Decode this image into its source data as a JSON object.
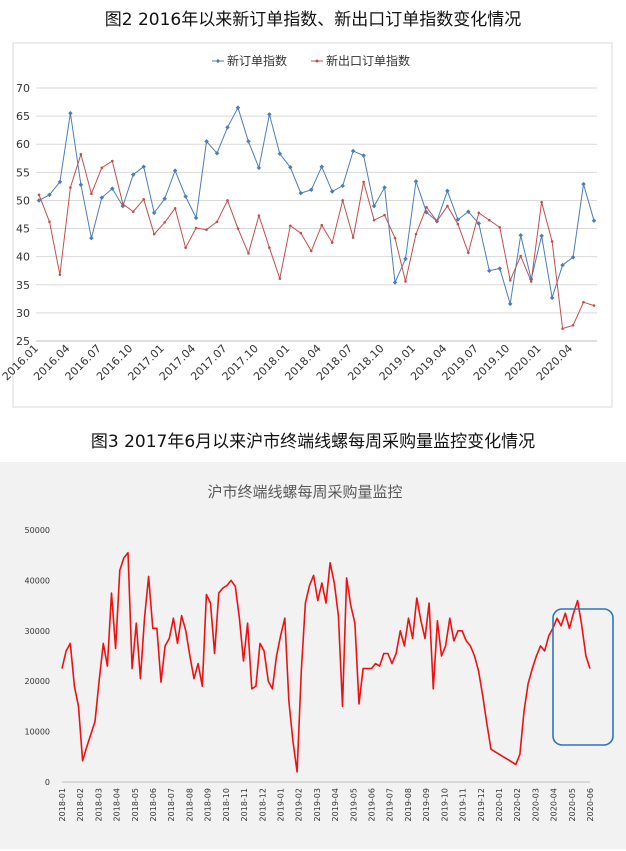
{
  "captions": {
    "fig2": "图2  2016年以来新订单指数、新出口订单指数变化情况",
    "fig3": "图3  2017年6月以来沪市终端线螺每周采购量监控变化情况"
  },
  "chart_data": [
    {
      "type": "line",
      "title": "",
      "ylim": [
        25,
        70
      ],
      "yticks": [
        25,
        30,
        35,
        40,
        45,
        50,
        55,
        60,
        65,
        70
      ],
      "xticklabels": [
        "2016.01",
        "2016.04",
        "2016.07",
        "2016.10",
        "2017.01",
        "2017.04",
        "2017.07",
        "2017.10",
        "2018.01",
        "2018.04",
        "2018.07",
        "2018.10",
        "2019.01",
        "2019.04",
        "2019.07",
        "2019.10",
        "2020.01",
        "2020.04"
      ],
      "grid": true,
      "legend": "top-center",
      "series": [
        {
          "name": "新订单指数",
          "color": "#4a7ebb",
          "values": [
            50.0,
            51.0,
            53.3,
            65.5,
            52.8,
            43.3,
            50.5,
            52.1,
            49.0,
            54.6,
            56.0,
            47.8,
            50.3,
            55.3,
            50.7,
            46.9,
            60.5,
            58.4,
            63.0,
            66.5,
            60.5,
            55.8,
            65.3,
            58.3,
            55.9,
            51.3,
            51.9,
            56.0,
            51.6,
            52.6,
            58.8,
            58.0,
            49.0,
            52.3,
            35.4,
            39.6,
            53.4,
            47.9,
            46.3,
            51.7,
            46.6,
            48.0,
            45.9,
            37.5,
            37.9,
            31.6,
            43.8,
            36.0,
            43.7,
            32.7,
            38.5,
            39.9,
            52.9,
            46.4
          ]
        },
        {
          "name": "新出口订单指数",
          "color": "#c0504d",
          "values": [
            51.0,
            46.2,
            36.8,
            52.3,
            58.2,
            51.2,
            55.8,
            57.0,
            49.4,
            48.0,
            50.2,
            44.0,
            46.1,
            48.6,
            41.6,
            45.1,
            44.8,
            46.2,
            50.0,
            45.0,
            40.6,
            47.3,
            41.6,
            36.1,
            45.5,
            44.2,
            41.0,
            45.6,
            42.5,
            50.0,
            43.4,
            53.3,
            46.5,
            47.4,
            43.3,
            35.6,
            44.0,
            48.8,
            46.3,
            49.0,
            45.8,
            40.7,
            47.8,
            46.5,
            45.2,
            35.8,
            40.1,
            35.6,
            49.7,
            42.7,
            27.2,
            27.8,
            31.9,
            31.3
          ]
        }
      ]
    },
    {
      "type": "line",
      "title": "沪市终端线螺每周采购量监控",
      "ylim": [
        0,
        50000
      ],
      "yticks": [
        0,
        10000,
        20000,
        30000,
        40000,
        50000
      ],
      "xticklabels": [
        "2018-01",
        "2018-02",
        "2018-03",
        "2018-04",
        "2018-05",
        "2018-06",
        "2018-07",
        "2018-08",
        "2018-09",
        "2018-10",
        "2018-11",
        "2018-12",
        "2019-01",
        "2019-02",
        "2019-03",
        "2019-04",
        "2019-05",
        "2019-06",
        "2019-07",
        "2019-08",
        "2019-09",
        "2019-10",
        "2019-11",
        "2019-12",
        "2020-01",
        "2020-02",
        "2020-03",
        "2020-04",
        "2020-05",
        "2020-06"
      ],
      "grid": false,
      "series": [
        {
          "color": "#ee1111",
          "values": [
            22500,
            26000,
            27500,
            19000,
            15000,
            4200,
            7000,
            9500,
            12000,
            20000,
            27500,
            23000,
            37500,
            26500,
            42000,
            44500,
            45500,
            22500,
            31500,
            20500,
            32500,
            40800,
            30500,
            30500,
            19800,
            27000,
            28500,
            32500,
            27500,
            33000,
            30000,
            25000,
            20500,
            23500,
            19000,
            37200,
            35500,
            25500,
            37500,
            38500,
            39000,
            40000,
            38800,
            32500,
            24000,
            31500,
            18500,
            19000,
            27500,
            26000,
            20000,
            18500,
            25000,
            29000,
            32500,
            16000,
            8000,
            2000,
            22000,
            35500,
            39000,
            41000,
            36000,
            39500,
            35500,
            43500,
            39500,
            33000,
            15000,
            40500,
            35000,
            31500,
            15500,
            22500,
            22500,
            22500,
            23500,
            23000,
            25500,
            25500,
            23500,
            25500,
            30000,
            27000,
            32500,
            28500,
            36500,
            32000,
            28500,
            35500,
            18500,
            32000,
            25000,
            27000,
            32500,
            28000,
            30000,
            30000,
            28000,
            27000,
            25000,
            22000,
            17000,
            11500,
            6500,
            6000,
            5500,
            5000,
            4500,
            4000,
            3500,
            5500,
            14000,
            19500,
            22500,
            25000,
            27000,
            26000,
            29000,
            30500,
            32500,
            31000,
            33500,
            30500,
            33500,
            36000,
            31000,
            25000,
            22500
          ]
        }
      ]
    }
  ]
}
